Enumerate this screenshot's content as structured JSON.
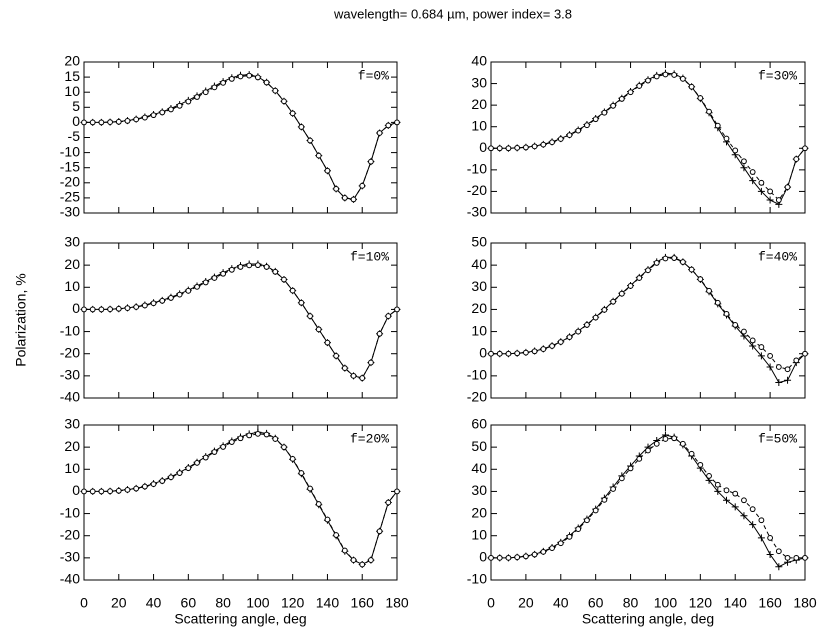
{
  "figure": {
    "title": "wavelength= 0.684 µm, power index= 3.8",
    "ylabel": "Polarization, %"
  },
  "chart_data": [
    {
      "type": "line",
      "label": "f=0%",
      "xlim": [
        0,
        180
      ],
      "xticks": [
        0,
        20,
        40,
        60,
        80,
        100,
        120,
        140,
        160,
        180
      ],
      "ylim": [
        -30,
        20
      ],
      "yticks": [
        -30,
        -25,
        -20,
        -15,
        -10,
        -5,
        0,
        5,
        10,
        15,
        20
      ],
      "x": [
        0,
        5,
        10,
        15,
        20,
        25,
        30,
        35,
        40,
        45,
        50,
        55,
        60,
        65,
        70,
        75,
        80,
        85,
        90,
        95,
        100,
        105,
        110,
        115,
        120,
        125,
        130,
        135,
        140,
        145,
        150,
        155,
        160,
        165,
        170,
        175,
        180
      ],
      "series": [
        {
          "color": "#000000",
          "dash": false,
          "marker": "plus",
          "values": [
            0,
            0,
            0,
            0.1,
            0.3,
            0.6,
            1.1,
            1.8,
            2.6,
            3.5,
            4.6,
            5.9,
            7.3,
            8.8,
            10.4,
            12,
            13.5,
            14.8,
            15.6,
            15.8,
            15.1,
            13.3,
            10.5,
            7,
            3,
            -1.5,
            -6,
            -11,
            -16,
            -22,
            -25,
            -25.5,
            -21,
            -13,
            -3.5,
            -1,
            0
          ]
        },
        {
          "color": "#000000",
          "dash": true,
          "marker": "circle",
          "values": [
            0,
            0,
            0,
            0.1,
            0.2,
            0.5,
            1,
            1.6,
            2.4,
            3.3,
            4.3,
            5.5,
            6.9,
            8.4,
            10,
            11.6,
            13.1,
            14.4,
            15.2,
            15.5,
            14.9,
            13.2,
            10.5,
            7,
            3,
            -1.5,
            -6,
            -11,
            -16,
            -22,
            -25,
            -25.5,
            -21,
            -13,
            -3.5,
            -1,
            0
          ]
        }
      ]
    },
    {
      "type": "line",
      "label": "f=30%",
      "xlim": [
        0,
        180
      ],
      "xticks": [
        0,
        20,
        40,
        60,
        80,
        100,
        120,
        140,
        160,
        180
      ],
      "ylim": [
        -30,
        40
      ],
      "yticks": [
        -30,
        -20,
        -10,
        0,
        10,
        20,
        30,
        40
      ],
      "x": [
        0,
        5,
        10,
        15,
        20,
        25,
        30,
        35,
        40,
        45,
        50,
        55,
        60,
        65,
        70,
        75,
        80,
        85,
        90,
        95,
        100,
        105,
        110,
        115,
        120,
        125,
        130,
        135,
        140,
        145,
        150,
        155,
        160,
        165,
        170,
        175,
        180
      ],
      "series": [
        {
          "color": "#000000",
          "dash": false,
          "marker": "plus",
          "values": [
            0,
            0,
            0,
            0.2,
            0.5,
            1,
            1.8,
            3,
            4.5,
            6.3,
            8.5,
            11,
            13.8,
            16.8,
            20,
            23.2,
            26.3,
            29.2,
            31.8,
            33.8,
            34.8,
            34.5,
            32.5,
            28.5,
            23,
            16.5,
            9.5,
            3,
            -3,
            -9,
            -15,
            -20,
            -24,
            -26,
            -18,
            -5,
            0
          ]
        },
        {
          "color": "#000000",
          "dash": true,
          "marker": "circle",
          "values": [
            0,
            0,
            0,
            0.2,
            0.4,
            0.9,
            1.7,
            2.8,
            4.3,
            6.1,
            8.2,
            10.7,
            13.5,
            16.5,
            19.7,
            22.9,
            26,
            28.9,
            31.4,
            33.3,
            34.2,
            34,
            32.2,
            28.5,
            23.3,
            17,
            10.5,
            4.5,
            -1,
            -6,
            -11,
            -16,
            -20,
            -24,
            -18,
            -5,
            0
          ]
        }
      ]
    },
    {
      "type": "line",
      "label": "f=10%",
      "xlim": [
        0,
        180
      ],
      "xticks": [
        0,
        20,
        40,
        60,
        80,
        100,
        120,
        140,
        160,
        180
      ],
      "ylim": [
        -40,
        30
      ],
      "yticks": [
        -40,
        -30,
        -20,
        -10,
        0,
        10,
        20,
        30
      ],
      "x": [
        0,
        5,
        10,
        15,
        20,
        25,
        30,
        35,
        40,
        45,
        50,
        55,
        60,
        65,
        70,
        75,
        80,
        85,
        90,
        95,
        100,
        105,
        110,
        115,
        120,
        125,
        130,
        135,
        140,
        145,
        150,
        155,
        160,
        165,
        170,
        175,
        180
      ],
      "series": [
        {
          "color": "#000000",
          "dash": false,
          "marker": "plus",
          "values": [
            0,
            0,
            0,
            0.1,
            0.3,
            0.7,
            1.2,
            2,
            3,
            4.1,
            5.5,
            7,
            8.7,
            10.6,
            12.6,
            14.6,
            16.6,
            18.4,
            19.8,
            20.5,
            20.5,
            19.5,
            17.2,
            13.5,
            8.5,
            3,
            -3,
            -9,
            -15,
            -21,
            -26.5,
            -30,
            -31,
            -24,
            -11,
            -3,
            0
          ]
        },
        {
          "color": "#000000",
          "dash": true,
          "marker": "circle",
          "values": [
            0,
            0,
            0,
            0.1,
            0.3,
            0.6,
            1.1,
            1.8,
            2.8,
            3.9,
            5.2,
            6.7,
            8.4,
            10.2,
            12.2,
            14.2,
            16.1,
            17.9,
            19.2,
            19.9,
            20,
            19.2,
            17,
            13.5,
            8.5,
            3,
            -3,
            -9,
            -15,
            -21,
            -26.5,
            -30,
            -31,
            -24,
            -11,
            -3,
            0
          ]
        }
      ]
    },
    {
      "type": "line",
      "label": "f=40%",
      "xlim": [
        0,
        180
      ],
      "xticks": [
        0,
        20,
        40,
        60,
        80,
        100,
        120,
        140,
        160,
        180
      ],
      "ylim": [
        -20,
        50
      ],
      "yticks": [
        -20,
        -10,
        0,
        10,
        20,
        30,
        40,
        50
      ],
      "x": [
        0,
        5,
        10,
        15,
        20,
        25,
        30,
        35,
        40,
        45,
        50,
        55,
        60,
        65,
        70,
        75,
        80,
        85,
        90,
        95,
        100,
        105,
        110,
        115,
        120,
        125,
        130,
        135,
        140,
        145,
        150,
        155,
        160,
        165,
        170,
        175,
        180
      ],
      "series": [
        {
          "color": "#000000",
          "dash": false,
          "marker": "plus",
          "values": [
            0,
            0,
            0,
            0.2,
            0.6,
            1.2,
            2.2,
            3.6,
            5.4,
            7.6,
            10.2,
            13.2,
            16.5,
            20,
            23.7,
            27.3,
            30.8,
            34.5,
            38,
            41.5,
            43.5,
            43.5,
            41.5,
            38,
            33.5,
            28,
            22.5,
            17.5,
            12.5,
            8,
            3.5,
            -1,
            -6,
            -13,
            -12,
            -4,
            0
          ]
        },
        {
          "color": "#000000",
          "dash": true,
          "marker": "circle",
          "values": [
            0,
            0,
            0,
            0.2,
            0.5,
            1.1,
            2.1,
            3.5,
            5.3,
            7.5,
            10,
            13,
            16.3,
            19.8,
            23.5,
            27.1,
            30.6,
            34.2,
            37.7,
            41,
            43,
            43.2,
            41.4,
            38,
            33.7,
            28.4,
            23,
            18,
            13,
            10,
            6,
            3,
            -1,
            -6,
            -7,
            -3,
            0
          ]
        }
      ]
    },
    {
      "type": "line",
      "label": "f=20%",
      "xlim": [
        0,
        180
      ],
      "xticks": [
        0,
        20,
        40,
        60,
        80,
        100,
        120,
        140,
        160,
        180
      ],
      "ylim": [
        -40,
        30
      ],
      "yticks": [
        -40,
        -30,
        -20,
        -10,
        0,
        10,
        20,
        30
      ],
      "xlabel": "Scattering angle, deg",
      "x": [
        0,
        5,
        10,
        15,
        20,
        25,
        30,
        35,
        40,
        45,
        50,
        55,
        60,
        65,
        70,
        75,
        80,
        85,
        90,
        95,
        100,
        105,
        110,
        115,
        120,
        125,
        130,
        135,
        140,
        145,
        150,
        155,
        160,
        165,
        170,
        175,
        180
      ],
      "series": [
        {
          "color": "#000000",
          "dash": false,
          "marker": "plus",
          "values": [
            0,
            0,
            0,
            0.1,
            0.4,
            0.8,
            1.4,
            2.3,
            3.5,
            4.9,
            6.6,
            8.6,
            10.8,
            13.2,
            15.7,
            18.2,
            20.6,
            22.8,
            24.6,
            26,
            26.7,
            26.2,
            24,
            20,
            14.5,
            8,
            1,
            -6,
            -13,
            -20,
            -27,
            -31,
            -33,
            -31,
            -18,
            -5,
            0
          ]
        },
        {
          "color": "#000000",
          "dash": true,
          "marker": "circle",
          "values": [
            0,
            0,
            0,
            0.1,
            0.3,
            0.7,
            1.3,
            2.2,
            3.3,
            4.7,
            6.4,
            8.3,
            10.5,
            12.9,
            15.3,
            17.8,
            20.1,
            22.3,
            24,
            25.3,
            26,
            25.7,
            23.7,
            20,
            14.7,
            8.3,
            1.3,
            -5.7,
            -12.7,
            -19.7,
            -26.7,
            -31,
            -33,
            -31,
            -18,
            -5,
            0
          ]
        }
      ]
    },
    {
      "type": "line",
      "label": "f=50%",
      "xlim": [
        0,
        180
      ],
      "xticks": [
        0,
        20,
        40,
        60,
        80,
        100,
        120,
        140,
        160,
        180
      ],
      "ylim": [
        -10,
        60
      ],
      "yticks": [
        -10,
        0,
        10,
        20,
        30,
        40,
        50,
        60
      ],
      "xlabel": "Scattering angle, deg",
      "x": [
        0,
        5,
        10,
        15,
        20,
        25,
        30,
        35,
        40,
        45,
        50,
        55,
        60,
        65,
        70,
        75,
        80,
        85,
        90,
        95,
        100,
        105,
        110,
        115,
        120,
        125,
        130,
        135,
        140,
        145,
        150,
        155,
        160,
        165,
        170,
        175,
        180
      ],
      "series": [
        {
          "color": "#000000",
          "dash": false,
          "marker": "plus",
          "values": [
            0,
            0,
            0,
            0.3,
            0.8,
            1.6,
            2.9,
            4.7,
            7,
            10,
            13.5,
            17.5,
            22,
            27,
            32,
            37,
            41.5,
            46,
            50,
            53,
            55.5,
            54.5,
            51,
            46,
            40.5,
            35,
            30,
            26,
            23,
            19,
            15,
            9,
            1.5,
            -4,
            -2,
            -1,
            0
          ]
        },
        {
          "color": "#000000",
          "dash": true,
          "marker": "circle",
          "values": [
            0,
            0,
            0,
            0.3,
            0.7,
            1.5,
            2.7,
            4.4,
            6.6,
            9.5,
            13,
            17,
            21.4,
            26.2,
            31.1,
            35.9,
            40.4,
            44.7,
            48.5,
            51.5,
            53.7,
            54,
            51.5,
            47,
            42,
            37,
            33,
            30.5,
            29,
            26,
            22,
            17,
            9,
            3,
            0,
            0,
            0
          ]
        }
      ]
    }
  ]
}
